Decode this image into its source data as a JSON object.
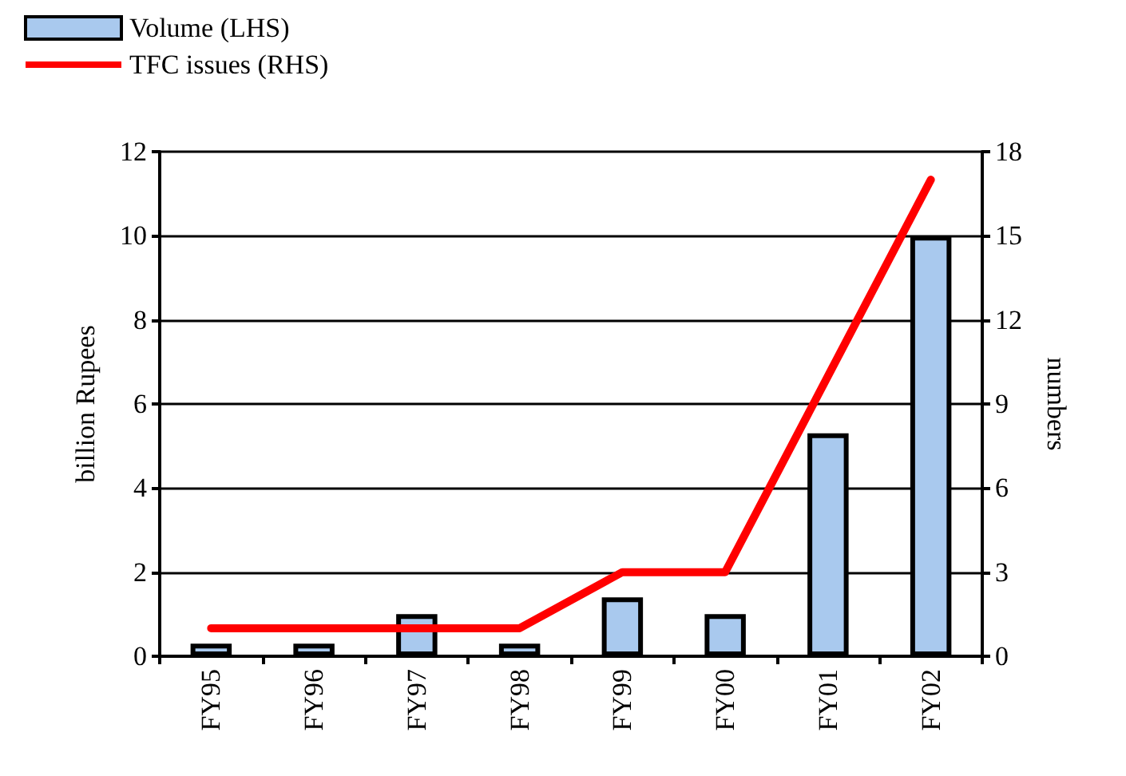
{
  "chart_data": {
    "type": "bar",
    "categories": [
      "FY95",
      "FY96",
      "FY97",
      "FY98",
      "FY99",
      "FY00",
      "FY01",
      "FY02"
    ],
    "series": [
      {
        "name": "Volume (LHS)",
        "color": "#a9c9ee",
        "values": [
          0.3,
          0.3,
          1.0,
          0.3,
          1.4,
          1.0,
          5.3,
          10.0
        ]
      },
      {
        "name": "TFC issues (RHS)",
        "type": "line",
        "axis": "y2",
        "color": "#ff0000",
        "values": [
          1,
          1,
          1,
          1,
          3,
          3,
          10,
          17
        ]
      }
    ],
    "ylabel": "billion Rupees",
    "y2label": "numbers",
    "ylim": [
      0,
      12
    ],
    "yticks": [
      0,
      2,
      4,
      6,
      8,
      10,
      12
    ],
    "y2lim": [
      0,
      18
    ],
    "y2ticks": [
      0,
      3,
      6,
      9,
      12,
      15,
      18
    ],
    "grid": "y",
    "legend": "top left",
    "marker": "none"
  }
}
